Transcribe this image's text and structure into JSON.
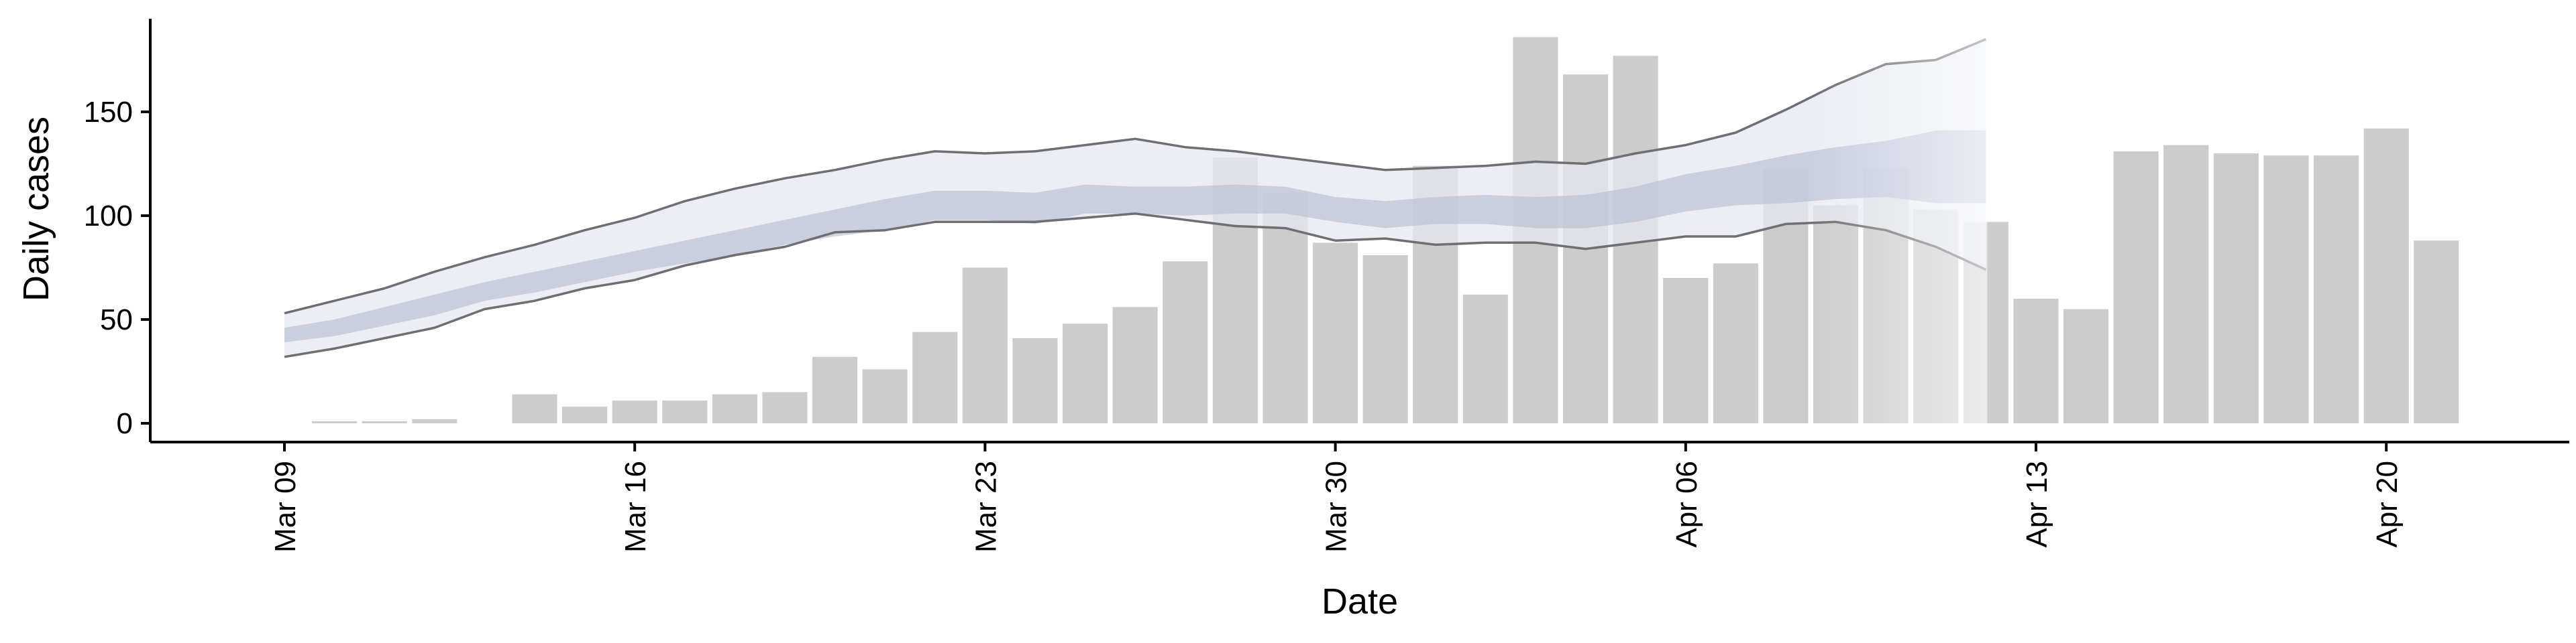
{
  "chart_data": {
    "type": "bar",
    "xlabel": "Date",
    "ylabel": "Daily cases",
    "ylim": [
      -8,
      194
    ],
    "y_ticks": [
      0,
      50,
      100,
      150
    ],
    "x_ticks": [
      "Mar 09",
      "Mar 16",
      "Mar 23",
      "Mar 30",
      "Apr 06",
      "Apr 13",
      "Apr 20"
    ],
    "grid": false,
    "dates": [
      "Mar 10",
      "Mar 11",
      "Mar 12",
      "Mar 13",
      "Mar 14",
      "Mar 15",
      "Mar 16",
      "Mar 17",
      "Mar 18",
      "Mar 19",
      "Mar 20",
      "Mar 21",
      "Mar 22",
      "Mar 23",
      "Mar 24",
      "Mar 25",
      "Mar 26",
      "Mar 27",
      "Mar 28",
      "Mar 29",
      "Mar 30",
      "Mar 31",
      "Apr 01",
      "Apr 02",
      "Apr 03",
      "Apr 04",
      "Apr 05",
      "Apr 06",
      "Apr 07",
      "Apr 08",
      "Apr 09",
      "Apr 10",
      "Apr 11",
      "Apr 12",
      "Apr 13",
      "Apr 14",
      "Apr 15",
      "Apr 16",
      "Apr 17",
      "Apr 18",
      "Apr 19",
      "Apr 20",
      "Apr 21"
    ],
    "values": [
      1,
      1,
      2,
      0,
      14,
      8,
      11,
      11,
      14,
      15,
      32,
      26,
      44,
      75,
      41,
      48,
      56,
      78,
      128,
      111,
      87,
      81,
      124,
      62,
      186,
      168,
      177,
      70,
      77,
      123,
      105,
      123,
      103,
      97,
      60,
      55,
      131,
      134,
      130,
      129,
      129,
      142,
      88
    ],
    "band_dates": [
      "Mar 09",
      "Mar 10",
      "Mar 11",
      "Mar 12",
      "Mar 13",
      "Mar 14",
      "Mar 15",
      "Mar 16",
      "Mar 17",
      "Mar 18",
      "Mar 19",
      "Mar 20",
      "Mar 21",
      "Mar 22",
      "Mar 23",
      "Mar 24",
      "Mar 25",
      "Mar 26",
      "Mar 27",
      "Mar 28",
      "Mar 29",
      "Mar 30",
      "Mar 31",
      "Apr 01",
      "Apr 02",
      "Apr 03",
      "Apr 04",
      "Apr 05",
      "Apr 06",
      "Apr 07",
      "Apr 08",
      "Apr 09",
      "Apr 10",
      "Apr 11",
      "Apr 12"
    ],
    "band_outer_upper": [
      53,
      59,
      65,
      73,
      80,
      86,
      93,
      99,
      107,
      113,
      118,
      122,
      127,
      131,
      130,
      131,
      134,
      137,
      133,
      131,
      128,
      125,
      122,
      123,
      124,
      126,
      125,
      130,
      134,
      140,
      151,
      163,
      173,
      175,
      185
    ],
    "band_outer_lower": [
      32,
      36,
      41,
      46,
      55,
      59,
      65,
      69,
      76,
      81,
      85,
      92,
      93,
      97,
      97,
      97,
      99,
      101,
      98,
      95,
      94,
      88,
      89,
      86,
      87,
      87,
      84,
      87,
      90,
      90,
      96,
      97,
      93,
      85,
      74
    ],
    "band_inner_upper": [
      46,
      50,
      56,
      62,
      68,
      73,
      78,
      83,
      88,
      93,
      98,
      103,
      108,
      112,
      112,
      111,
      115,
      114,
      114,
      115,
      114,
      109,
      107,
      109,
      110,
      109,
      110,
      114,
      120,
      124,
      129,
      133,
      136,
      141,
      141
    ],
    "band_inner_lower": [
      39,
      42,
      47,
      52,
      59,
      63,
      68,
      73,
      77,
      81,
      86,
      90,
      93,
      98,
      98,
      96,
      101,
      101,
      100,
      101,
      101,
      97,
      94,
      96,
      96,
      94,
      94,
      97,
      102,
      105,
      106,
      108,
      109,
      106,
      106
    ],
    "colors": {
      "bars": "#cccccc",
      "band_outer": "#e6e8f0",
      "band_inner": "#b8bfd6",
      "band_edge": "#6e6e75",
      "axis": "#000000"
    }
  }
}
